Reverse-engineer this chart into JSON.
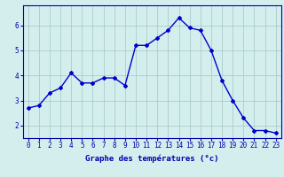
{
  "hours": [
    0,
    1,
    2,
    3,
    4,
    5,
    6,
    7,
    8,
    9,
    10,
    11,
    12,
    13,
    14,
    15,
    16,
    17,
    18,
    19,
    20,
    21,
    22,
    23
  ],
  "temps": [
    2.7,
    2.8,
    3.3,
    3.5,
    4.1,
    3.7,
    3.7,
    3.9,
    3.9,
    3.6,
    5.2,
    5.2,
    5.5,
    5.8,
    6.3,
    5.9,
    5.8,
    5.0,
    3.8,
    3.0,
    2.3,
    1.8,
    1.8,
    1.7
  ],
  "line_color": "#0000cc",
  "bg_color": "#d4eeee",
  "grid_color": "#aacccc",
  "axis_color": "#0000aa",
  "xlabel": "Graphe des températures (°c)",
  "ylim": [
    1.5,
    6.8
  ],
  "xlim": [
    -0.5,
    23.5
  ],
  "yticks": [
    2,
    3,
    4,
    5,
    6
  ],
  "xticks": [
    0,
    1,
    2,
    3,
    4,
    5,
    6,
    7,
    8,
    9,
    10,
    11,
    12,
    13,
    14,
    15,
    16,
    17,
    18,
    19,
    20,
    21,
    22,
    23
  ],
  "marker": "D",
  "marker_size": 2.0,
  "line_width": 1.0,
  "xlabel_fontsize": 6.5,
  "tick_fontsize": 5.5
}
